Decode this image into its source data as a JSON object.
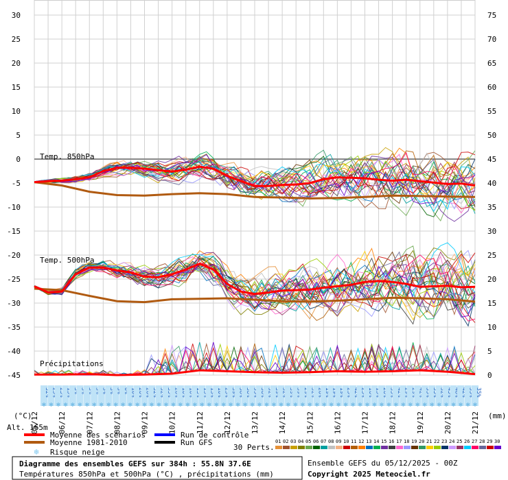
{
  "chart_data": {
    "type": "line",
    "title": "Diagramme des ensembles GEFS sur 384h : 55.8N 37.6E",
    "subtitle": "Températures 850hPa et 500hPa (°C) , précipitations (mm)",
    "run_label": "Ensemble GEFS du 05/12/2025 - 00Z",
    "copyright": "Copyright 2025 Meteociel.fr",
    "altitude_label": "Alt. 165m",
    "xlabel_left": "(°C)",
    "xlabel_right": "(mm)",
    "x_dates": [
      "05/12",
      "06/12",
      "07/12",
      "08/12",
      "09/12",
      "10/12",
      "11/12",
      "12/12",
      "13/12",
      "14/12",
      "15/12",
      "16/12",
      "17/12",
      "18/12",
      "19/12",
      "20/12",
      "21/12"
    ],
    "y_left_ticks": [
      30,
      25,
      20,
      15,
      10,
      5,
      0,
      -5,
      -10,
      -15,
      -20,
      -25,
      -30,
      -35,
      -40,
      -45
    ],
    "y_right_ticks": [
      75,
      70,
      65,
      60,
      55,
      50,
      45,
      40,
      35,
      30,
      25,
      20,
      15,
      10,
      5,
      0
    ],
    "ylim_left": [
      -45,
      30
    ],
    "ylim_right": [
      0,
      75
    ],
    "panel_labels": {
      "t850": "Temp. 850hPa",
      "t500": "Temp. 500hPa",
      "precip": "Précipitations"
    },
    "legend": [
      {
        "label": "Moyenne des scénarios",
        "color": "#ff0000"
      },
      {
        "label": "Moyenne 1981-2010",
        "color": "#b05a10"
      },
      {
        "label": "Risque neige",
        "color": "#7fc8f0"
      },
      {
        "label": "Run de contrôle",
        "color": "#0000ff"
      },
      {
        "label": "Run GFS",
        "color": "#000000"
      }
    ],
    "perts_label": "30 Perts.",
    "pert_numbers": [
      "01",
      "02",
      "03",
      "04",
      "05",
      "06",
      "07",
      "08",
      "09",
      "10",
      "11",
      "12",
      "13",
      "14",
      "15",
      "16",
      "17",
      "18",
      "19",
      "20",
      "21",
      "22",
      "23",
      "24",
      "25",
      "26",
      "27",
      "28",
      "29",
      "30"
    ],
    "pert_colors": [
      "#e69138",
      "#a0522d",
      "#c8a000",
      "#808000",
      "#6aa84f",
      "#006400",
      "#00a0a0",
      "#c0c0c0",
      "#f4b183",
      "#cc0000",
      "#b45f06",
      "#ff7f00",
      "#0070c0",
      "#00b050",
      "#7030a0",
      "#404040",
      "#ff66cc",
      "#9999ff",
      "#663300",
      "#339966",
      "#ffcc00",
      "#99cc00",
      "#003366",
      "#cc99ff",
      "#993366",
      "#00ccff",
      "#ff0066",
      "#666699",
      "#cc0000",
      "#6600cc"
    ],
    "snow_risk_pct": [
      "52%",
      "23%",
      "23%",
      "13%",
      "3%",
      "3%",
      "3%",
      "3%",
      "3%",
      "3%",
      "3%",
      "6%",
      "10%",
      "26%",
      "26%",
      "32%",
      "52%",
      "35%",
      "26%",
      "10%",
      "10%",
      "13%",
      "13%",
      "13%",
      "10%",
      "23%",
      "39%",
      "58%",
      "58%",
      "55%",
      "58%",
      "52%",
      "39%",
      "32%",
      "39%",
      "39%",
      "29%",
      "32%",
      "26%",
      "19%",
      "19%",
      "19%",
      "23%",
      "42%",
      "23%",
      "16%",
      "13%",
      "26%",
      "35%",
      "42%",
      "29%",
      "29%",
      "42%",
      "55%",
      "35%",
      "32%",
      "45%",
      "48%",
      "42%",
      "35%",
      "35%"
    ],
    "series": [
      {
        "name": "Moyenne 1981-2010 (850hPa)",
        "x": [
          0,
          1,
          2,
          3,
          4,
          5,
          6,
          7,
          8,
          9,
          10,
          11,
          12,
          13,
          14,
          15,
          16
        ],
        "values": [
          -4.8,
          -5.5,
          -6.8,
          -7.5,
          -7.6,
          -7.3,
          -7.1,
          -7.3,
          -7.9,
          -8.0,
          -8.2,
          -8.1,
          -7.9,
          -7.6,
          -7.7,
          -7.8,
          -7.9
        ]
      },
      {
        "name": "Moyenne des scénarios (850hPa)",
        "x": [
          0,
          0.5,
          1,
          1.5,
          2,
          2.5,
          3,
          3.5,
          4,
          4.5,
          5,
          5.5,
          6,
          6.5,
          7,
          7.5,
          8,
          8.5,
          9,
          9.5,
          10,
          10.5,
          11,
          11.5,
          12,
          12.5,
          13,
          13.5,
          14,
          14.5,
          15,
          15.5,
          16
        ],
        "values": [
          -4.8,
          -4.6,
          -4.5,
          -4.2,
          -3.8,
          -2.5,
          -1.8,
          -1.8,
          -2.0,
          -2.3,
          -2.6,
          -2.2,
          -1.6,
          -2.0,
          -3.5,
          -4.6,
          -5.6,
          -5.6,
          -5.4,
          -5.3,
          -5.0,
          -4.2,
          -3.8,
          -3.9,
          -4.0,
          -4.3,
          -4.5,
          -4.3,
          -4.6,
          -4.9,
          -5.2,
          -5.1,
          -5.5
        ]
      },
      {
        "name": "Moyenne 1981-2010 (500hPa)",
        "x": [
          0,
          1,
          2,
          3,
          4,
          5,
          6,
          7,
          8,
          9,
          10,
          11,
          12,
          13,
          14,
          15,
          16
        ],
        "values": [
          -27.0,
          -27.3,
          -28.5,
          -29.6,
          -29.8,
          -29.2,
          -29.1,
          -29.0,
          -29.3,
          -29.6,
          -29.7,
          -29.5,
          -29.2,
          -28.9,
          -29.0,
          -29.2,
          -29.7
        ]
      },
      {
        "name": "Moyenne des scénarios (500hPa)",
        "x": [
          0,
          0.5,
          1,
          1.5,
          2,
          2.5,
          3,
          3.5,
          4,
          4.5,
          5,
          5.5,
          6,
          6.5,
          7,
          7.5,
          8,
          8.5,
          9,
          9.5,
          10,
          10.5,
          11,
          11.5,
          12,
          12.5,
          13,
          13.5,
          14,
          14.5,
          15,
          15.5,
          16
        ],
        "values": [
          -26.5,
          -27.8,
          -27.6,
          -24.0,
          -22.6,
          -22.6,
          -23.2,
          -23.6,
          -24.5,
          -24.6,
          -24.0,
          -23.0,
          -21.8,
          -23.0,
          -26.0,
          -27.6,
          -28.1,
          -27.8,
          -27.4,
          -27.3,
          -27.2,
          -26.8,
          -26.5,
          -26.2,
          -25.6,
          -25.4,
          -25.6,
          -26.0,
          -26.6,
          -26.5,
          -26.4,
          -26.7,
          -26.6
        ]
      },
      {
        "name": "Moyenne des scénarios (précip.)",
        "x": [
          0,
          1,
          2,
          3,
          4,
          5,
          6,
          7,
          8,
          9,
          10,
          11,
          12,
          13,
          14,
          15,
          16
        ],
        "values": [
          0.1,
          0.1,
          0.2,
          0.0,
          0.1,
          0.3,
          1.0,
          0.8,
          0.6,
          0.5,
          0.6,
          0.8,
          0.7,
          0.8,
          1.0,
          0.7,
          0.2
        ]
      }
    ]
  }
}
